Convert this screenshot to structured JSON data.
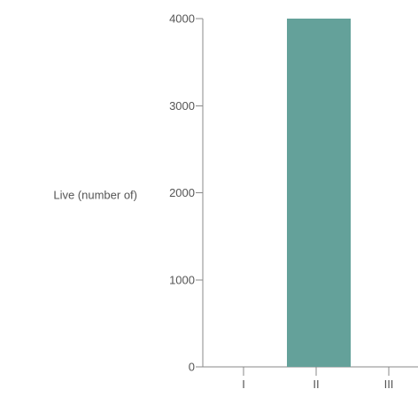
{
  "chart_data": {
    "type": "bar",
    "ylabel": "Live (number of)",
    "xlabel": "",
    "categories": [
      "I",
      "II",
      "III"
    ],
    "values": [
      0,
      4000,
      0
    ],
    "ylim": [
      0,
      4000
    ],
    "yticks": [
      0,
      1000,
      2000,
      3000,
      4000
    ],
    "grid": false,
    "bar_color": "#64a19a",
    "axis_color": "#888888",
    "text_color": "#555555"
  }
}
